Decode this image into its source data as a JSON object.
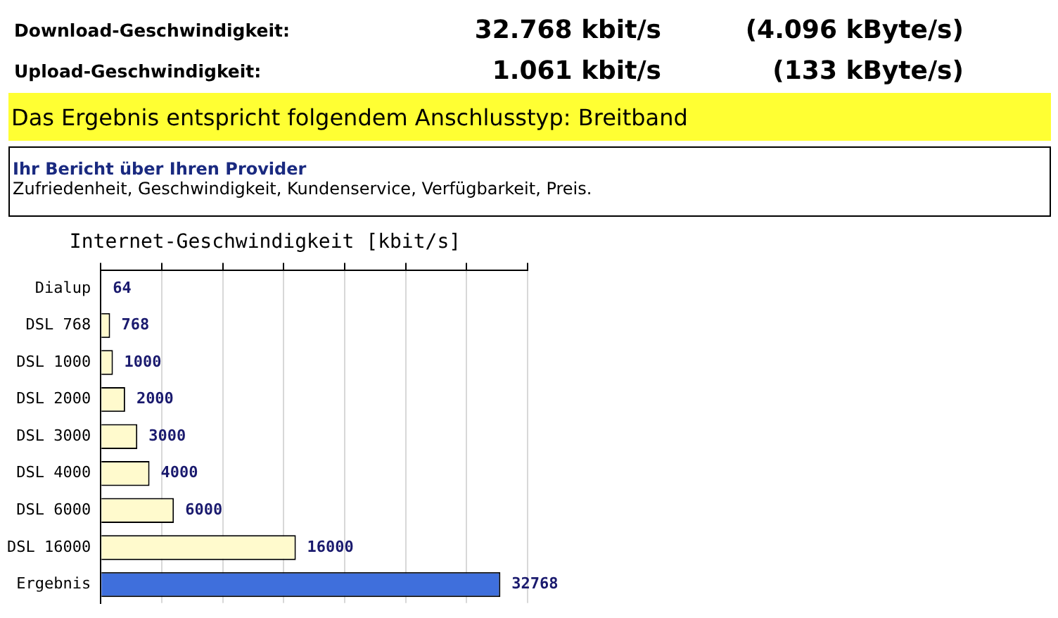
{
  "chart_data": {
    "type": "bar",
    "orientation": "horizontal",
    "title": "Internet-Geschwindigkeit [kbit/s]",
    "categories": [
      "Dialup",
      "DSL 768",
      "DSL 1000",
      "DSL 2000",
      "DSL 3000",
      "DSL 4000",
      "DSL 6000",
      "DSL 16000",
      "Ergebnis"
    ],
    "values": [
      64,
      768,
      1000,
      2000,
      3000,
      4000,
      6000,
      16000,
      32768
    ],
    "colors": [
      "#fffacd",
      "#fffacd",
      "#fffacd",
      "#fffacd",
      "#fffacd",
      "#fffacd",
      "#fffacd",
      "#fffacd",
      "#3f6fdc"
    ],
    "data_labels": true,
    "tick_labels": "y",
    "grid": "x",
    "annotations": [
      "Download-Geschwindigkeit:",
      "32.768 kbit/s",
      "(4.096 kByte/s)",
      "Upload-Geschwindigkeit:",
      "1.061 kbit/s",
      "(133 kByte/s)",
      "Das Ergebnis entspricht folgendem Anschlusstyp: Breitband",
      "Ihr Bericht über Ihren Provider",
      "Zufriedenheit, Geschwindigkeit, Kundenservice, Verfügbarkeit, Preis."
    ]
  }
}
